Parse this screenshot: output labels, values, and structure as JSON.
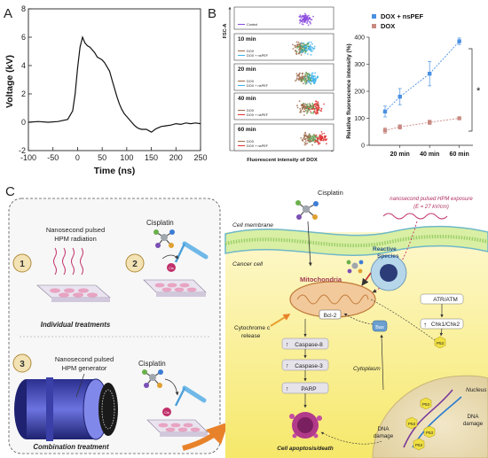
{
  "panels": {
    "a": {
      "letter": "A"
    },
    "b": {
      "letter": "B"
    },
    "c": {
      "letter": "C"
    }
  },
  "chart_data": [
    {
      "type": "line",
      "panel": "A",
      "xlabel": "Time (ns)",
      "ylabel": "Voltage (kV)",
      "xlim": [
        -100,
        250
      ],
      "ylim": [
        -2,
        8
      ],
      "xticks": [
        -100,
        -50,
        0,
        50,
        100,
        150,
        200,
        250
      ],
      "yticks": [
        -2,
        0,
        2,
        4,
        6,
        8
      ],
      "series": [
        {
          "x": [
            -100,
            -80,
            -60,
            -40,
            -20,
            -10,
            -5,
            0,
            5,
            10,
            15,
            20,
            25,
            30,
            35,
            40,
            45,
            50,
            55,
            60,
            65,
            70,
            75,
            80,
            85,
            90,
            95,
            100,
            105,
            110,
            115,
            120,
            125,
            130,
            140,
            150,
            160,
            170,
            180,
            190,
            200,
            210,
            220,
            230,
            240,
            250
          ],
          "y": [
            0.0,
            0.05,
            0.0,
            0.05,
            0.2,
            0.8,
            2.0,
            3.8,
            5.3,
            6.0,
            5.6,
            5.4,
            5.3,
            5.1,
            4.9,
            4.6,
            4.5,
            4.4,
            4.2,
            3.9,
            3.6,
            3.0,
            2.4,
            1.8,
            1.3,
            0.9,
            0.6,
            0.4,
            0.2,
            0.0,
            -0.2,
            -0.35,
            -0.45,
            -0.5,
            -0.5,
            -0.7,
            -0.45,
            -0.3,
            -0.25,
            -0.2,
            -0.1,
            -0.15,
            -0.05,
            -0.1,
            -0.05,
            -0.1
          ]
        }
      ]
    },
    {
      "type": "scatter",
      "panel": "B-flow",
      "ylabel": "FSC-A",
      "xlabel": "Fluorescent intensity of DOX",
      "rows": [
        {
          "title": "",
          "legend": [
            "Control"
          ]
        },
        {
          "title": "10 min",
          "legend": [
            "DOX",
            "DOX + nsPEF"
          ]
        },
        {
          "title": "20 min",
          "legend": [
            "DOX",
            "DOX + nsPEF"
          ]
        },
        {
          "title": "40 min",
          "legend": [
            "DOX",
            "DOX + nsPEF"
          ]
        },
        {
          "title": "60 min",
          "legend": [
            "DOX",
            "DOX + nsPEF"
          ]
        }
      ]
    },
    {
      "type": "line",
      "panel": "B-bar",
      "ylabel": "Relative fluorescence intensity (%)",
      "categories": [
        "20 min",
        "40 min",
        "60 min"
      ],
      "ylim": [
        0,
        400
      ],
      "yticks": [
        0,
        100,
        200,
        300,
        400
      ],
      "significance": "*",
      "series": [
        {
          "name": "DOX + nsPEF",
          "color": "#4a90e2",
          "x": [
            0,
            0.5,
            1.5,
            2.5
          ],
          "values": [
            125,
            180,
            265,
            385
          ],
          "err": [
            20,
            30,
            45,
            12
          ]
        },
        {
          "name": "DOX",
          "color": "#c98a82",
          "x": [
            0,
            0.5,
            1.5,
            2.5
          ],
          "values": [
            55,
            68,
            85,
            100
          ],
          "err": [
            10,
            8,
            8,
            5
          ]
        }
      ]
    }
  ],
  "schematic": {
    "left": {
      "step1": "1",
      "step1_text": [
        "Nanosecond pulsed",
        "HPM radiation"
      ],
      "step2": "2",
      "cisplatin_top": "Cisplatin",
      "cis_label": "Cis",
      "individual": "Individual treatments",
      "step3": "3",
      "step3_text": [
        "Nanosecond pulsed",
        "HPM generator"
      ],
      "cisplatin_bottom": "Cisplatin",
      "combination": "Combination treatment"
    },
    "right": {
      "cisplatin": "Cisplatin",
      "exposure": [
        "nanosecond pulsed HPM exposure",
        "(E = 27 kV/cm)"
      ],
      "cell_membrane": "Cell membrane",
      "cancer_cell": "Cancer cell",
      "mitochondria": "Mitochondria",
      "reactive": [
        "Reactive",
        "Species"
      ],
      "bcl2": "Bcl-2",
      "bax": "Bax",
      "atr": "ATR/ATM",
      "chk": "Chk1/Chk2",
      "p53": "P53",
      "cyto_c": [
        "Cytochrome c",
        "release"
      ],
      "caspase8": "Caspase-8",
      "caspase3": "Caspase-3",
      "parp": "PARP",
      "cytoplasm": "Cytoplasm",
      "nucleus": "Nucleus",
      "dna_damage_left": [
        "DNA",
        "damage"
      ],
      "dna_damage_right": [
        "DNA",
        "damage"
      ],
      "apoptosis": "Cell apoptosis/death",
      "up_arrow": "↑"
    }
  }
}
